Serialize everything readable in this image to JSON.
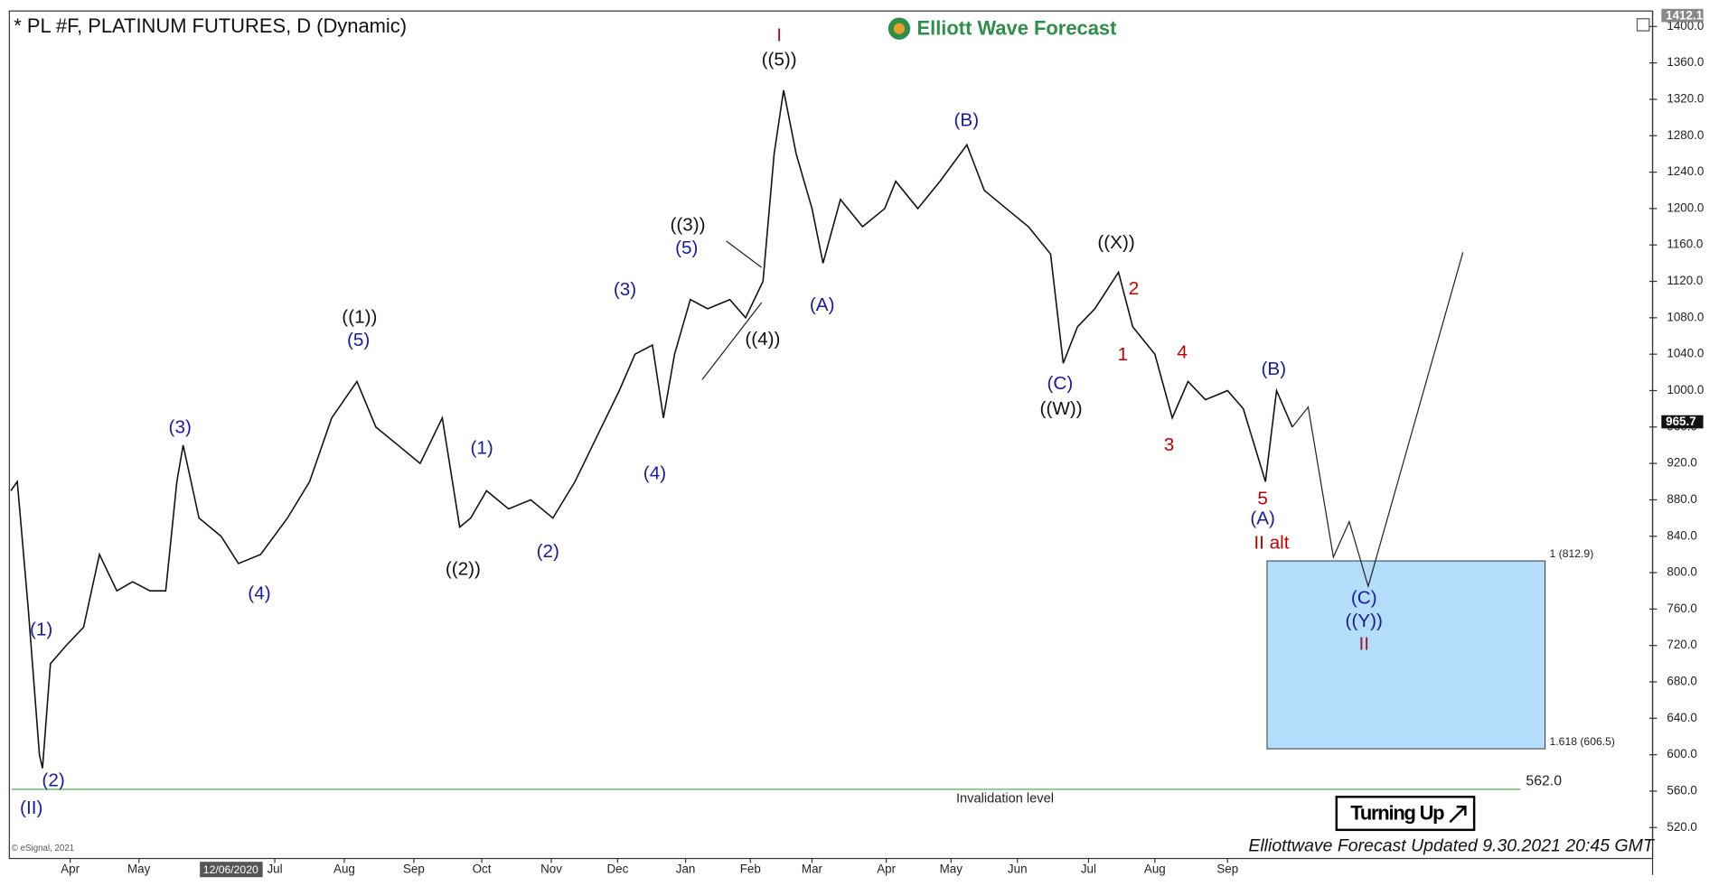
{
  "chart_data": {
    "type": "line",
    "title": "* PL #F, PLATINUM FUTURES, D (Dynamic)",
    "logo": "Elliott Wave Forecast",
    "footer": "Elliottwave Forecast Updated 9.30.2021 20:45 GMT",
    "copyright": "© eSignal, 2021",
    "badge": "Turning Up",
    "cursor_date": "12/06/2020",
    "xlim": [
      0,
      104
    ],
    "xticks": [
      {
        "value": 3.85,
        "label": "Apr"
      },
      {
        "value": 8.2,
        "label": "May"
      },
      {
        "value": 16.8,
        "label": "Jul"
      },
      {
        "value": 21.2,
        "label": "Aug"
      },
      {
        "value": 25.6,
        "label": "Sep"
      },
      {
        "value": 29.9,
        "label": "Oct"
      },
      {
        "value": 34.3,
        "label": "Nov"
      },
      {
        "value": 38.5,
        "label": "Dec"
      },
      {
        "value": 42.8,
        "label": "Jan"
      },
      {
        "value": 46.9,
        "label": "Feb"
      },
      {
        "value": 50.8,
        "label": "Mar"
      },
      {
        "value": 55.5,
        "label": "Apr"
      },
      {
        "value": 59.6,
        "label": "May"
      },
      {
        "value": 63.8,
        "label": "Jun"
      },
      {
        "value": 68.3,
        "label": "Jul"
      },
      {
        "value": 72.5,
        "label": "Aug"
      },
      {
        "value": 77.1,
        "label": "Sep"
      }
    ],
    "ylim": [
      486,
      1417
    ],
    "yticks": [
      520,
      560,
      600,
      640,
      680,
      720,
      760,
      800,
      840,
      880,
      920,
      960,
      1000,
      1040,
      1080,
      1120,
      1160,
      1200,
      1240,
      1280,
      1320,
      1360,
      1400
    ],
    "ytick_labels": [
      {
        "value": 520,
        "label": "520.0"
      },
      {
        "value": 560,
        "label": "560.0"
      },
      {
        "value": 600,
        "label": "600.0"
      },
      {
        "value": 640,
        "label": "640.0"
      },
      {
        "value": 680,
        "label": "680.0"
      },
      {
        "value": 720,
        "label": "720.0"
      },
      {
        "value": 760,
        "label": "760.0"
      },
      {
        "value": 800,
        "label": "800.0"
      },
      {
        "value": 840,
        "label": "840.0"
      },
      {
        "value": 880,
        "label": "880.0"
      },
      {
        "value": 920,
        "label": "920.0"
      },
      {
        "value": 960,
        "label": "960.0"
      },
      {
        "value": 1000,
        "label": "1000.0"
      },
      {
        "value": 1040,
        "label": "1040.0"
      },
      {
        "value": 1080,
        "label": "1080.0"
      },
      {
        "value": 1120,
        "label": "1120.0"
      },
      {
        "value": 1160,
        "label": "1160.0"
      },
      {
        "value": 1200,
        "label": "1200.0"
      },
      {
        "value": 1240,
        "label": "1240.0"
      },
      {
        "value": 1280,
        "label": "1280.0"
      },
      {
        "value": 1320,
        "label": "1320.0"
      },
      {
        "value": 1360,
        "label": "1360.0"
      },
      {
        "value": 1400,
        "label": "1400.0"
      }
    ],
    "series": [
      {
        "name": "PL #F",
        "color": "#111111",
        "x": [
          0.1,
          0.5,
          1.2,
          1.9,
          2.1,
          2.6,
          3.6,
          4.7,
          5.7,
          6.8,
          7.8,
          8.9,
          9.9,
          10.6,
          11,
          12,
          13.4,
          14.5,
          15.9,
          17.6,
          19,
          20.4,
          22,
          23.2,
          24.6,
          26,
          27.4,
          28.5,
          29.2,
          30.2,
          31.6,
          33,
          34.4,
          35.8,
          37.2,
          38.6,
          39.6,
          40.7,
          41.4,
          42.1,
          43.1,
          44.2,
          45.6,
          46.6,
          47.7,
          48.4,
          49,
          49.8,
          50.8,
          51.5,
          52.6,
          54,
          55.4,
          56.1,
          57.5,
          58.9,
          60.6,
          61.7,
          63.1,
          64.5,
          65.9,
          66.7,
          67.6,
          68.7,
          70.2,
          71.1,
          72.5,
          73.6,
          74.6,
          75.7,
          77.1,
          78.1,
          79.5,
          80.2,
          81.2
        ],
        "values": [
          890,
          900,
          760,
          600,
          585,
          700,
          720,
          740,
          820,
          780,
          790,
          780,
          780,
          900,
          940,
          860,
          840,
          810,
          820,
          860,
          900,
          970,
          1010,
          960,
          940,
          920,
          970,
          850,
          860,
          890,
          870,
          880,
          860,
          900,
          950,
          1000,
          1040,
          1050,
          970,
          1040,
          1100,
          1090,
          1100,
          1080,
          1120,
          1260,
          1330,
          1260,
          1200,
          1140,
          1210,
          1180,
          1200,
          1230,
          1200,
          1230,
          1270,
          1220,
          1200,
          1180,
          1150,
          1030,
          1070,
          1090,
          1130,
          1070,
          1040,
          970,
          1010,
          990,
          1000,
          980,
          900,
          1000,
          960
        ]
      },
      {
        "name": "Projection",
        "color": "#222222",
        "x": [
          81.2,
          82.2,
          83.8,
          84.8,
          86,
          92
        ],
        "values": [
          960,
          982,
          817,
          856,
          785,
          1152
        ]
      }
    ],
    "target_zone": {
      "top": 812.9,
      "bottom": 606.5,
      "x": [
        79.6,
        97.2
      ],
      "color": "#b3ddfb",
      "top_label": "1 (812.9)",
      "bottom_label": "1.618 (606.5)"
    },
    "invalidation": {
      "value": 562,
      "label": "562.0",
      "text": "Invalidation level",
      "color": "#5cc05c"
    },
    "price_tags": [
      {
        "value": 965.7,
        "label": "965.7"
      },
      {
        "value": 1412.1,
        "label": "1412.1"
      }
    ],
    "annotations": [
      {
        "text": "((1))",
        "color": "#111111"
      },
      {
        "text": "((2))",
        "color": "#111111"
      },
      {
        "text": "((3))",
        "color": "#111111"
      },
      {
        "text": "((4))",
        "color": "#111111"
      },
      {
        "text": "((5))",
        "color": "#111111"
      },
      {
        "text": "((W))",
        "color": "#111111"
      },
      {
        "text": "((X))",
        "color": "#111111"
      },
      {
        "text": "((Y))",
        "color": "#1a1a8c"
      },
      {
        "text": "(1)",
        "color": "#1a1aa0"
      },
      {
        "text": "(2)",
        "color": "#1a1aa0"
      },
      {
        "text": "(3)",
        "color": "#1a1aa0"
      },
      {
        "text": "(5)",
        "color": "#1a1aa0"
      },
      {
        "text": "(4)",
        "color": "#1a1aa0"
      },
      {
        "text": "(1)",
        "color": "#1a1aa0"
      },
      {
        "text": "(2)",
        "color": "#1a1aa0"
      },
      {
        "text": "(3)",
        "color": "#1a1aa0"
      },
      {
        "text": "(5)",
        "color": "#1a1aa0"
      },
      {
        "text": "(4)",
        "color": "#1a1aa0"
      },
      {
        "text": "(A)",
        "color": "#1a1aa0"
      },
      {
        "text": "(B)",
        "color": "#1a1aa0"
      },
      {
        "text": "(C)",
        "color": "#1a1aa0"
      },
      {
        "text": "(B)",
        "color": "#1a1aa0"
      },
      {
        "text": "(A)",
        "color": "#1a1aa0"
      },
      {
        "text": "(C)",
        "color": "#1a1aa0"
      },
      {
        "text": "(II)",
        "color": "#1a1aa0"
      },
      {
        "text": "I",
        "color": "#b01020"
      },
      {
        "text": "1",
        "color": "#c00000"
      },
      {
        "text": "2",
        "color": "#c00000"
      },
      {
        "text": "3",
        "color": "#c00000"
      },
      {
        "text": "4",
        "color": "#c00000"
      },
      {
        "text": "5",
        "color": "#c00000"
      },
      {
        "text": "II alt",
        "color": "#c00000"
      },
      {
        "text": "II",
        "color": "#a01828"
      }
    ]
  }
}
